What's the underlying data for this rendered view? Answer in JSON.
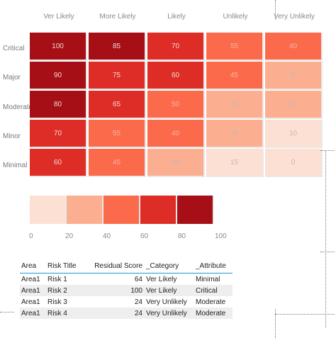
{
  "heatmap": {
    "columns": [
      "Ver Likely",
      "More Likely",
      "Likely",
      "Unlikely",
      "Very Unlikely"
    ],
    "rows": [
      "Critical",
      "Major",
      "Moderate",
      "Minor",
      "Minimal"
    ],
    "values": [
      [
        100,
        85,
        70,
        55,
        40
      ],
      [
        90,
        75,
        60,
        45,
        30
      ],
      [
        80,
        65,
        50,
        35,
        20
      ],
      [
        70,
        55,
        40,
        25,
        10
      ],
      [
        60,
        45,
        30,
        15,
        0
      ]
    ]
  },
  "legend": {
    "ticks": [
      "0",
      "20",
      "40",
      "60",
      "80",
      "100"
    ],
    "colors": [
      "#fde0d4",
      "#fcae91",
      "#fb6a4a",
      "#de2d26",
      "#a50f15"
    ]
  },
  "table": {
    "headers": [
      "Area",
      "Risk Title",
      "Residual Score",
      "_Category",
      "_Attribute"
    ],
    "rows": [
      [
        "Area1",
        "Risk 1",
        "64",
        "Ver Likely",
        "Minimal"
      ],
      [
        "Area1",
        "Risk 2",
        "100",
        "Ver Likely",
        "Critical"
      ],
      [
        "Area1",
        "Risk 3",
        "24",
        "Very Unlikely",
        "Moderate"
      ],
      [
        "Area1",
        "Risk 4",
        "24",
        "Very Unlikely",
        "Moderate"
      ]
    ]
  }
}
